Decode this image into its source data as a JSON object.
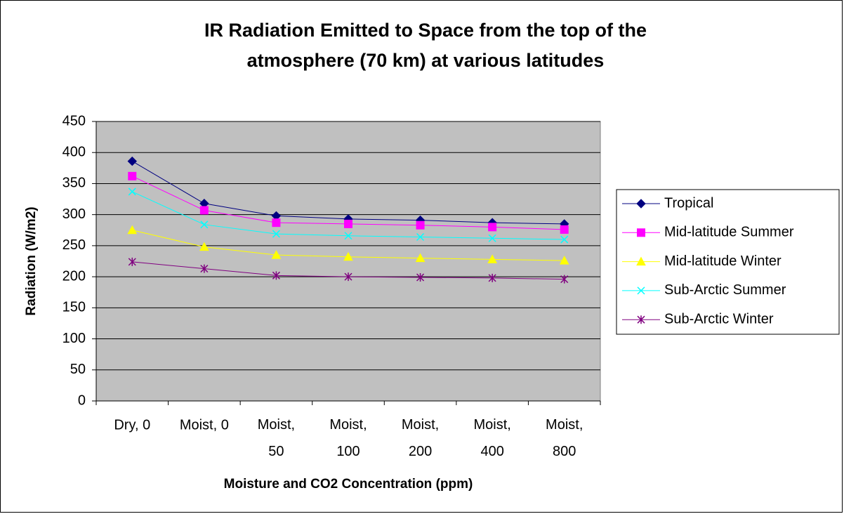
{
  "chart_data": {
    "type": "line",
    "title": [
      "IR Radiation Emitted to Space from the top of the",
      "atmosphere (70 km) at various latitudes"
    ],
    "x_label": "Moisture and CO2 Concentration (ppm)",
    "y_label": "Radiation (W/m2)",
    "categories": [
      "Dry, 0",
      "Moist, 0",
      "Moist, 50",
      "Moist, 100",
      "Moist, 200",
      "Moist, 400",
      "Moist, 800"
    ],
    "ylim": [
      0,
      450
    ],
    "yticks": [
      0,
      50,
      100,
      150,
      200,
      250,
      300,
      350,
      400,
      450
    ],
    "grid": true,
    "legend": "right",
    "series": [
      {
        "name": "Tropical",
        "color": "#000080",
        "marker": "diamond",
        "values": [
          386,
          318,
          298,
          293,
          291,
          287,
          285
        ]
      },
      {
        "name": "Mid-latitude Summer",
        "color": "#ff00ff",
        "marker": "square",
        "values": [
          362,
          307,
          287,
          285,
          283,
          280,
          276
        ]
      },
      {
        "name": "Mid-latitude Winter",
        "color": "#ffff00",
        "marker": "triangle",
        "values": [
          275,
          248,
          235,
          232,
          230,
          228,
          226
        ]
      },
      {
        "name": "Sub-Arctic Summer",
        "color": "#00ffff",
        "marker": "x",
        "values": [
          337,
          284,
          269,
          266,
          264,
          262,
          260
        ]
      },
      {
        "name": "Sub-Arctic Winter",
        "color": "#800080",
        "marker": "star",
        "values": [
          224,
          213,
          202,
          200,
          199,
          198,
          196
        ]
      }
    ]
  }
}
